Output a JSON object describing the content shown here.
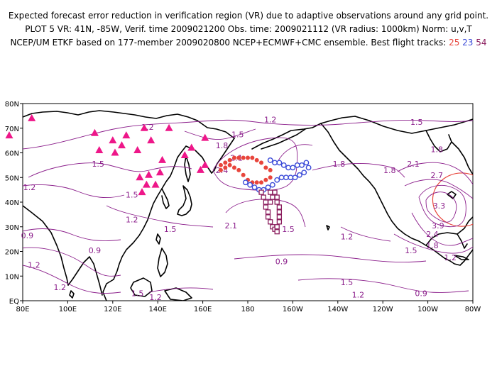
{
  "header": {
    "line1": "Expected forecast error reduction in verification region (VR) due to adaptive observations around any grid point.",
    "line2": "PLOT 5 VR: 41N, -85W, Verif. time 2009021200 Obs. time: 2009021112 (VR radius: 1000km) Norm: u,v,T",
    "line3_prefix": "NCEP/UM ETKF based on 177-member 2009020800 NCEP+ECMWF+CMC ensemble. Best flight tracks:",
    "track_a": "25",
    "track_b": "23",
    "track_c": "54"
  },
  "axes": {
    "x_ticks": [
      "80E",
      "100E",
      "120E",
      "140E",
      "160E",
      "180",
      "160W",
      "140W",
      "120W",
      "100W",
      "80W"
    ],
    "y_ticks": [
      "EQ",
      "10N",
      "20N",
      "30N",
      "40N",
      "50N",
      "60N",
      "70N",
      "80N"
    ]
  },
  "contour_labels": [
    {
      "text": "1.2",
      "lon": 135.5,
      "lat": 70.5
    },
    {
      "text": "1.5",
      "lon": 113.5,
      "lat": 55.5
    },
    {
      "text": "1.2",
      "lon": 83,
      "lat": 46
    },
    {
      "text": "1.5",
      "lon": 128.5,
      "lat": 43
    },
    {
      "text": "1.2",
      "lon": 128.5,
      "lat": 33
    },
    {
      "text": "0.9",
      "lon": 82,
      "lat": 26.5
    },
    {
      "text": "0.9",
      "lon": 112,
      "lat": 20.5
    },
    {
      "text": "1.2",
      "lon": 85,
      "lat": 14.5
    },
    {
      "text": "1.2",
      "lon": 96.5,
      "lat": 5.5
    },
    {
      "text": "1.5",
      "lon": 131,
      "lat": 3
    },
    {
      "text": "1.2",
      "lon": 139,
      "lat": 1.5
    },
    {
      "text": "1.5",
      "lon": 145.5,
      "lat": 29
    },
    {
      "text": "2.1",
      "lon": 172.5,
      "lat": 30.5
    },
    {
      "text": "2.4",
      "lon": 168.5,
      "lat": 53
    },
    {
      "text": "2.1",
      "lon": 175,
      "lat": 58
    },
    {
      "text": "1.8",
      "lon": 168.5,
      "lat": 63
    },
    {
      "text": "1.5",
      "lon": 175.5,
      "lat": 67.5
    },
    {
      "text": "1.2",
      "lon": 190,
      "lat": 73.5
    },
    {
      "text": "1.5",
      "lon": 255,
      "lat": 72.5
    },
    {
      "text": "1.8",
      "lon": 220.5,
      "lat": 55.5
    },
    {
      "text": "1.8",
      "lon": 243,
      "lat": 53
    },
    {
      "text": "1.8",
      "lon": 264,
      "lat": 61.5
    },
    {
      "text": "2.1",
      "lon": 253.5,
      "lat": 55.5
    },
    {
      "text": "2.7",
      "lon": 264,
      "lat": 51
    },
    {
      "text": "3.3",
      "lon": 265,
      "lat": 38.5
    },
    {
      "text": "3.9",
      "lon": 264.5,
      "lat": 30.5
    },
    {
      "text": "2.4",
      "lon": 262,
      "lat": 27
    },
    {
      "text": "1.8",
      "lon": 262,
      "lat": 22.5
    },
    {
      "text": "1.5",
      "lon": 252.5,
      "lat": 20.5
    },
    {
      "text": "1.2",
      "lon": 270,
      "lat": 17.5
    },
    {
      "text": "1.2",
      "lon": 224,
      "lat": 26
    },
    {
      "text": "0.9",
      "lon": 195,
      "lat": 16
    },
    {
      "text": "1.5",
      "lon": 224,
      "lat": 7.5
    },
    {
      "text": "1.2",
      "lon": 229,
      "lat": 2.5
    },
    {
      "text": "0.9",
      "lon": 257,
      "lat": 3
    },
    {
      "text": "1.5",
      "lon": 198,
      "lat": 29
    }
  ],
  "triangles": [
    [
      74,
      67
    ],
    [
      84,
      74
    ],
    [
      112,
      68
    ],
    [
      114,
      61
    ],
    [
      120,
      65
    ],
    [
      121,
      60
    ],
    [
      124,
      63
    ],
    [
      126,
      67
    ],
    [
      131,
      61
    ],
    [
      134,
      70
    ],
    [
      137,
      65
    ],
    [
      132,
      50
    ],
    [
      133,
      44
    ],
    [
      135,
      47
    ],
    [
      136,
      51
    ],
    [
      139,
      47
    ],
    [
      141,
      52
    ],
    [
      142,
      57
    ],
    [
      145,
      70
    ],
    [
      152,
      59
    ],
    [
      155,
      62
    ],
    [
      159,
      53
    ],
    [
      161,
      55
    ],
    [
      161,
      66
    ]
  ],
  "track_red_circles": [
    [
      168,
      55
    ],
    [
      170,
      56
    ],
    [
      172,
      57
    ],
    [
      174,
      58
    ],
    [
      176,
      58
    ],
    [
      178,
      58
    ],
    [
      180,
      58
    ],
    [
      182,
      58
    ],
    [
      184,
      57
    ],
    [
      186,
      56
    ],
    [
      188,
      54
    ],
    [
      190,
      53
    ],
    [
      190,
      50
    ],
    [
      188,
      49
    ],
    [
      186,
      48
    ],
    [
      184,
      48
    ],
    [
      182,
      48
    ],
    [
      180,
      49
    ],
    [
      178,
      51
    ],
    [
      176,
      53
    ],
    [
      174,
      54
    ],
    [
      172,
      55
    ],
    [
      170,
      54
    ],
    [
      168,
      53
    ]
  ],
  "track_blue_circles": [
    [
      190,
      57
    ],
    [
      192,
      56
    ],
    [
      194,
      56
    ],
    [
      196,
      55
    ],
    [
      198,
      54
    ],
    [
      200,
      54
    ],
    [
      202,
      55
    ],
    [
      204,
      55
    ],
    [
      206,
      56
    ],
    [
      207,
      54
    ],
    [
      205,
      52
    ],
    [
      203,
      51
    ],
    [
      201,
      50
    ],
    [
      199,
      50
    ],
    [
      197,
      50
    ],
    [
      195,
      50
    ],
    [
      193,
      49
    ],
    [
      191,
      47
    ],
    [
      189,
      46
    ],
    [
      187,
      45
    ],
    [
      185,
      45
    ],
    [
      183,
      46
    ],
    [
      181,
      47
    ],
    [
      179,
      48
    ]
  ],
  "track_purple_squares": [
    [
      186,
      44
    ],
    [
      187,
      42
    ],
    [
      188,
      40
    ],
    [
      188,
      38
    ],
    [
      189,
      36
    ],
    [
      189,
      34
    ],
    [
      190,
      32
    ],
    [
      191,
      30
    ],
    [
      192,
      29
    ],
    [
      193,
      28
    ],
    [
      193,
      30
    ],
    [
      194,
      32
    ],
    [
      194,
      34
    ],
    [
      194,
      36
    ],
    [
      194,
      38
    ],
    [
      193,
      40
    ],
    [
      193,
      42
    ],
    [
      192,
      44
    ],
    [
      190,
      44
    ],
    [
      191,
      42
    ],
    [
      190,
      40
    ]
  ],
  "verification_region": {
    "lat": 41,
    "lon": -85,
    "radius_km": 1000
  },
  "colors": {
    "contour": "#8b1e8b",
    "triangles": "#ee1789",
    "track_red": "#e8453c",
    "track_blue": "#3a4ad8",
    "track_purple": "#8b1e5e",
    "verification_circle": "#e8453c",
    "coast": "#000000"
  }
}
